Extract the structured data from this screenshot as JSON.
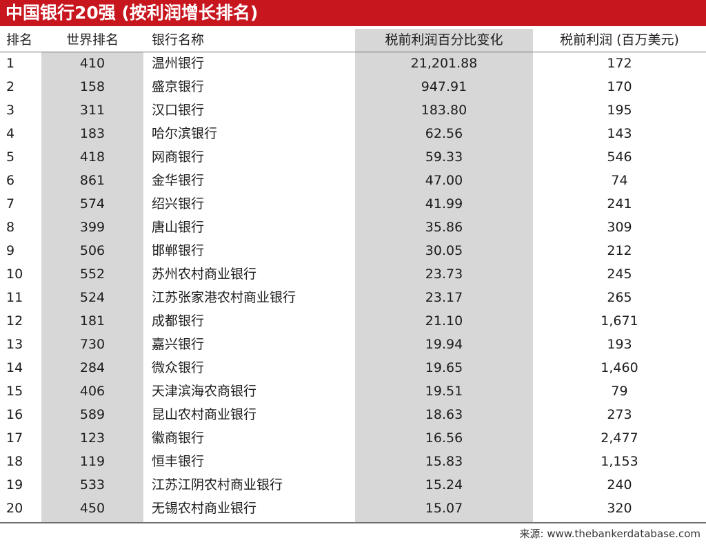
{
  "title": "中国银行20强 (按利润增长排名)",
  "chart_data": {
    "type": "table",
    "title": "中国银行20强 (按利润增长排名)",
    "columns": [
      "排名",
      "世界排名",
      "银行名称",
      "税前利润百分比变化",
      "税前利润 (百万美元)"
    ],
    "rows": [
      [
        "1",
        "410",
        "温州银行",
        "21,201.88",
        "172"
      ],
      [
        "2",
        "158",
        "盛京银行",
        "947.91",
        "170"
      ],
      [
        "3",
        "311",
        "汉口银行",
        "183.80",
        "195"
      ],
      [
        "4",
        "183",
        "哈尔滨银行",
        "62.56",
        "143"
      ],
      [
        "5",
        "418",
        "网商银行",
        "59.33",
        "546"
      ],
      [
        "6",
        "861",
        "金华银行",
        "47.00",
        "74"
      ],
      [
        "7",
        "574",
        "绍兴银行",
        "41.99",
        "241"
      ],
      [
        "8",
        "399",
        "唐山银行",
        "35.86",
        "309"
      ],
      [
        "9",
        "506",
        "邯郸银行",
        "30.05",
        "212"
      ],
      [
        "10",
        "552",
        "苏州农村商业银行",
        "23.73",
        "245"
      ],
      [
        "11",
        "524",
        "江苏张家港农村商业银行",
        "23.17",
        "265"
      ],
      [
        "12",
        "181",
        "成都银行",
        "21.10",
        "1,671"
      ],
      [
        "13",
        "730",
        "嘉兴银行",
        "19.94",
        "193"
      ],
      [
        "14",
        "284",
        "微众银行",
        "19.65",
        "1,460"
      ],
      [
        "15",
        "406",
        "天津滨海农商银行",
        "19.51",
        "79"
      ],
      [
        "16",
        "589",
        "昆山农村商业银行",
        "18.63",
        "273"
      ],
      [
        "17",
        "123",
        "徽商银行",
        "16.56",
        "2,477"
      ],
      [
        "18",
        "119",
        "恒丰银行",
        "15.83",
        "1,153"
      ],
      [
        "19",
        "533",
        "江苏江阴农村商业银行",
        "15.24",
        "240"
      ],
      [
        "20",
        "450",
        "无锡农村商业银行",
        "15.07",
        "320"
      ]
    ]
  },
  "source": "来源: www.thebankerdatabase.com",
  "colors": {
    "title_bar": "#c8161e",
    "column_shade": "#d7d7d7",
    "text": "#1c1c1c"
  }
}
